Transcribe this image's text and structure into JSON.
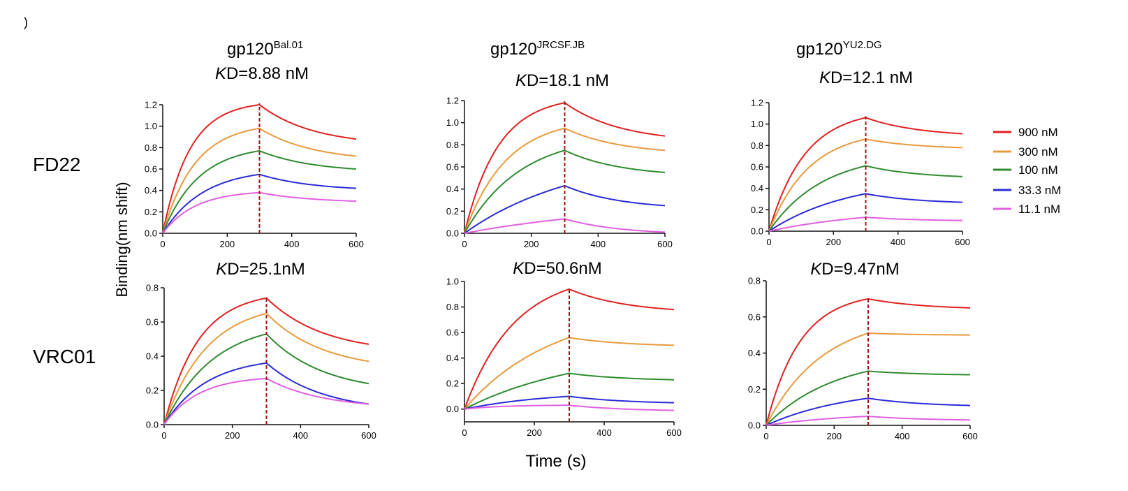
{
  "panel_letter": ")",
  "row_labels": [
    "FD22",
    "VRC01"
  ],
  "columns": [
    {
      "name": "gp120",
      "sup": "Bal.01"
    },
    {
      "name": "gp120",
      "sup": "JRCSF.JB"
    },
    {
      "name": "gp120",
      "sup": "YU2.DG"
    }
  ],
  "ylabel": "Binding(nm shift)",
  "xlabel": "Time (s)",
  "legend": [
    {
      "label": "900 nM",
      "color": "#e02020"
    },
    {
      "label": "300 nM",
      "color": "#e89a3c"
    },
    {
      "label": "100 nM",
      "color": "#2e8b2e"
    },
    {
      "label": "33.3 nM",
      "color": "#2b2bd8"
    },
    {
      "label": "11.1 nM",
      "color": "#e060e0"
    }
  ],
  "colors": {
    "dissociation_line": "#a01010",
    "axis": "#111111"
  },
  "chart_data": [
    {
      "type": "line",
      "row": "FD22",
      "column": "gp120 Bal.01",
      "kd_prefix": "K",
      "kd_text": "D=8.88 nM",
      "xlim": [
        0,
        600
      ],
      "xticks": [
        0,
        200,
        400,
        600
      ],
      "ylim": [
        0,
        1.2
      ],
      "yticks": [
        "0.0",
        "0.2",
        "0.4",
        "0.6",
        "0.8",
        "1.0",
        "1.2"
      ],
      "dissociation_start": 300,
      "series": [
        {
          "name": "900 nM",
          "plateau": 1.2,
          "k_on": 0.012,
          "end": 0.88
        },
        {
          "name": "300 nM",
          "plateau": 0.98,
          "k_on": 0.01,
          "end": 0.72
        },
        {
          "name": "100 nM",
          "plateau": 0.77,
          "k_on": 0.009,
          "end": 0.6
        },
        {
          "name": "33.3 nM",
          "plateau": 0.55,
          "k_on": 0.008,
          "end": 0.42
        },
        {
          "name": "11.1 nM",
          "plateau": 0.38,
          "k_on": 0.01,
          "end": 0.3
        }
      ]
    },
    {
      "type": "line",
      "row": "FD22",
      "column": "gp120 JRCSF.JB",
      "kd_prefix": "K",
      "kd_text": "D=18.1 nM",
      "xlim": [
        0,
        600
      ],
      "xticks": [
        0,
        200,
        400,
        600
      ],
      "ylim": [
        0,
        1.2
      ],
      "yticks": [
        "0.0",
        "0.2",
        "0.4",
        "0.6",
        "0.8",
        "1.0",
        "1.2"
      ],
      "dissociation_start": 300,
      "series": [
        {
          "name": "900 nM",
          "plateau": 1.18,
          "k_on": 0.01,
          "end": 0.88
        },
        {
          "name": "300 nM",
          "plateau": 0.95,
          "k_on": 0.008,
          "end": 0.75
        },
        {
          "name": "100 nM",
          "plateau": 0.75,
          "k_on": 0.006,
          "end": 0.55
        },
        {
          "name": "33.3 nM",
          "plateau": 0.43,
          "k_on": 0.003,
          "end": 0.25
        },
        {
          "name": "11.1 nM",
          "plateau": 0.13,
          "k_on": 0.002,
          "end": 0.01
        }
      ]
    },
    {
      "type": "line",
      "row": "FD22",
      "column": "gp120 YU2.DG",
      "kd_prefix": "K",
      "kd_text": "D=12.1 nM",
      "xlim": [
        0,
        600
      ],
      "xticks": [
        0,
        200,
        400,
        600
      ],
      "ylim": [
        0,
        1.2
      ],
      "yticks": [
        "0.0",
        "0.2",
        "0.4",
        "0.6",
        "0.8",
        "1.0",
        "1.2"
      ],
      "dissociation_start": 300,
      "series": [
        {
          "name": "900 nM",
          "plateau": 1.06,
          "k_on": 0.009,
          "end": 0.91
        },
        {
          "name": "300 nM",
          "plateau": 0.86,
          "k_on": 0.008,
          "end": 0.78
        },
        {
          "name": "100 nM",
          "plateau": 0.61,
          "k_on": 0.006,
          "end": 0.51
        },
        {
          "name": "33.3 nM",
          "plateau": 0.35,
          "k_on": 0.004,
          "end": 0.27
        },
        {
          "name": "11.1 nM",
          "plateau": 0.13,
          "k_on": 0.003,
          "end": 0.1
        }
      ]
    },
    {
      "type": "line",
      "row": "VRC01",
      "column": "gp120 Bal.01",
      "kd_prefix": "K",
      "kd_text": "D=25.1nM",
      "xlim": [
        0,
        600
      ],
      "xticks": [
        0,
        200,
        400,
        600
      ],
      "ylim": [
        0,
        0.8
      ],
      "yticks": [
        "0.0",
        "0.2",
        "0.4",
        "0.6",
        "0.8"
      ],
      "dissociation_start": 300,
      "series": [
        {
          "name": "900 nM",
          "plateau": 0.74,
          "k_on": 0.01,
          "end": 0.47
        },
        {
          "name": "300 nM",
          "plateau": 0.65,
          "k_on": 0.008,
          "end": 0.37
        },
        {
          "name": "100 nM",
          "plateau": 0.53,
          "k_on": 0.007,
          "end": 0.24
        },
        {
          "name": "33.3 nM",
          "plateau": 0.36,
          "k_on": 0.008,
          "end": 0.12
        },
        {
          "name": "11.1 nM",
          "plateau": 0.27,
          "k_on": 0.01,
          "end": 0.12
        }
      ]
    },
    {
      "type": "line",
      "row": "VRC01",
      "column": "gp120 JRCSF.JB",
      "kd_prefix": "K",
      "kd_text": "D=50.6nM",
      "xlim": [
        0,
        600
      ],
      "xticks": [
        0,
        200,
        400,
        600
      ],
      "ylim": [
        -0.1,
        1.0
      ],
      "yticks": [
        "0.0",
        "0.2",
        "0.4",
        "0.6",
        "0.8",
        "1.0"
      ],
      "dissociation_start": 300,
      "series": [
        {
          "name": "900 nM",
          "plateau": 0.94,
          "k_on": 0.007,
          "end": 0.78
        },
        {
          "name": "300 nM",
          "plateau": 0.56,
          "k_on": 0.004,
          "end": 0.5
        },
        {
          "name": "100 nM",
          "plateau": 0.28,
          "k_on": 0.003,
          "end": 0.23
        },
        {
          "name": "33.3 nM",
          "plateau": 0.1,
          "k_on": 0.004,
          "end": 0.05
        },
        {
          "name": "11.1 nM",
          "plateau": 0.03,
          "k_on": 0.01,
          "end": -0.01
        }
      ]
    },
    {
      "type": "line",
      "row": "VRC01",
      "column": "gp120 YU2.DG",
      "kd_prefix": "K",
      "kd_text": "D=9.47nM",
      "xlim": [
        0,
        600
      ],
      "xticks": [
        0,
        200,
        400,
        600
      ],
      "ylim": [
        0,
        0.8
      ],
      "yticks": [
        "0.0",
        "0.2",
        "0.4",
        "0.6",
        "0.8"
      ],
      "dissociation_start": 300,
      "series": [
        {
          "name": "900 nM",
          "plateau": 0.7,
          "k_on": 0.01,
          "end": 0.65
        },
        {
          "name": "300 nM",
          "plateau": 0.51,
          "k_on": 0.006,
          "end": 0.5
        },
        {
          "name": "100 nM",
          "plateau": 0.3,
          "k_on": 0.005,
          "end": 0.28
        },
        {
          "name": "33.3 nM",
          "plateau": 0.15,
          "k_on": 0.004,
          "end": 0.11
        },
        {
          "name": "11.1 nM",
          "plateau": 0.05,
          "k_on": 0.004,
          "end": 0.03
        }
      ]
    }
  ]
}
